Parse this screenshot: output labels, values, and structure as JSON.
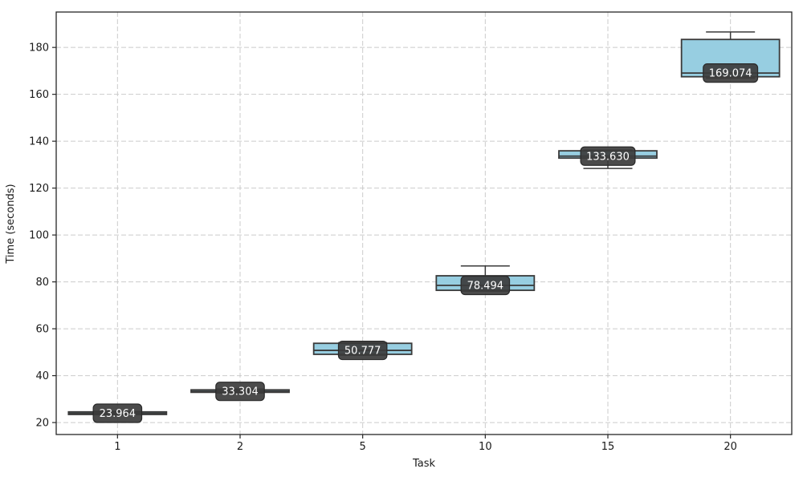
{
  "chart_data": {
    "type": "box",
    "title": "",
    "xlabel": "Task",
    "ylabel": "Time (seconds)",
    "categories": [
      "1",
      "2",
      "5",
      "10",
      "15",
      "20"
    ],
    "y_ticks": [
      20,
      40,
      60,
      80,
      100,
      120,
      140,
      160,
      180
    ],
    "ylim": [
      14.9,
      195.1
    ],
    "grid": true,
    "grid_style": "dashed",
    "legend": "none",
    "boxes": [
      {
        "category": "1",
        "whisker_low": 23.3,
        "q1": 23.45,
        "median": 23.964,
        "q3": 24.55,
        "whisker_high": 24.8,
        "label": "23.964"
      },
      {
        "category": "2",
        "whisker_low": 32.6,
        "q1": 32.9,
        "median": 33.304,
        "q3": 33.95,
        "whisker_high": 34.3,
        "label": "33.304"
      },
      {
        "category": "5",
        "whisker_low": 48.7,
        "q1": 49.1,
        "median": 50.777,
        "q3": 53.8,
        "whisker_high": 54.1,
        "label": "50.777"
      },
      {
        "category": "10",
        "whisker_low": 76.0,
        "q1": 76.4,
        "median": 78.494,
        "q3": 82.6,
        "whisker_high": 86.8,
        "label": "78.494"
      },
      {
        "category": "15",
        "whisker_low": 128.4,
        "q1": 132.8,
        "median": 133.63,
        "q3": 135.9,
        "whisker_high": 136.2,
        "label": "133.630"
      },
      {
        "category": "20",
        "whisker_low": 166.9,
        "q1": 167.5,
        "median": 169.074,
        "q3": 183.4,
        "whisker_high": 186.6,
        "label": "169.074"
      }
    ],
    "colors": {
      "box_fill": "#97cee1",
      "box_edge": "#3a3a3a",
      "median_line": "#3a3a3a",
      "whisker": "#3a3a3a",
      "label_bg": "#3c3c3c",
      "label_border": "#2a2a2a",
      "label_text": "#ffffff",
      "grid": "#cbcbcb",
      "spine": "#262626",
      "tick_text": "#1a1a1a"
    }
  }
}
